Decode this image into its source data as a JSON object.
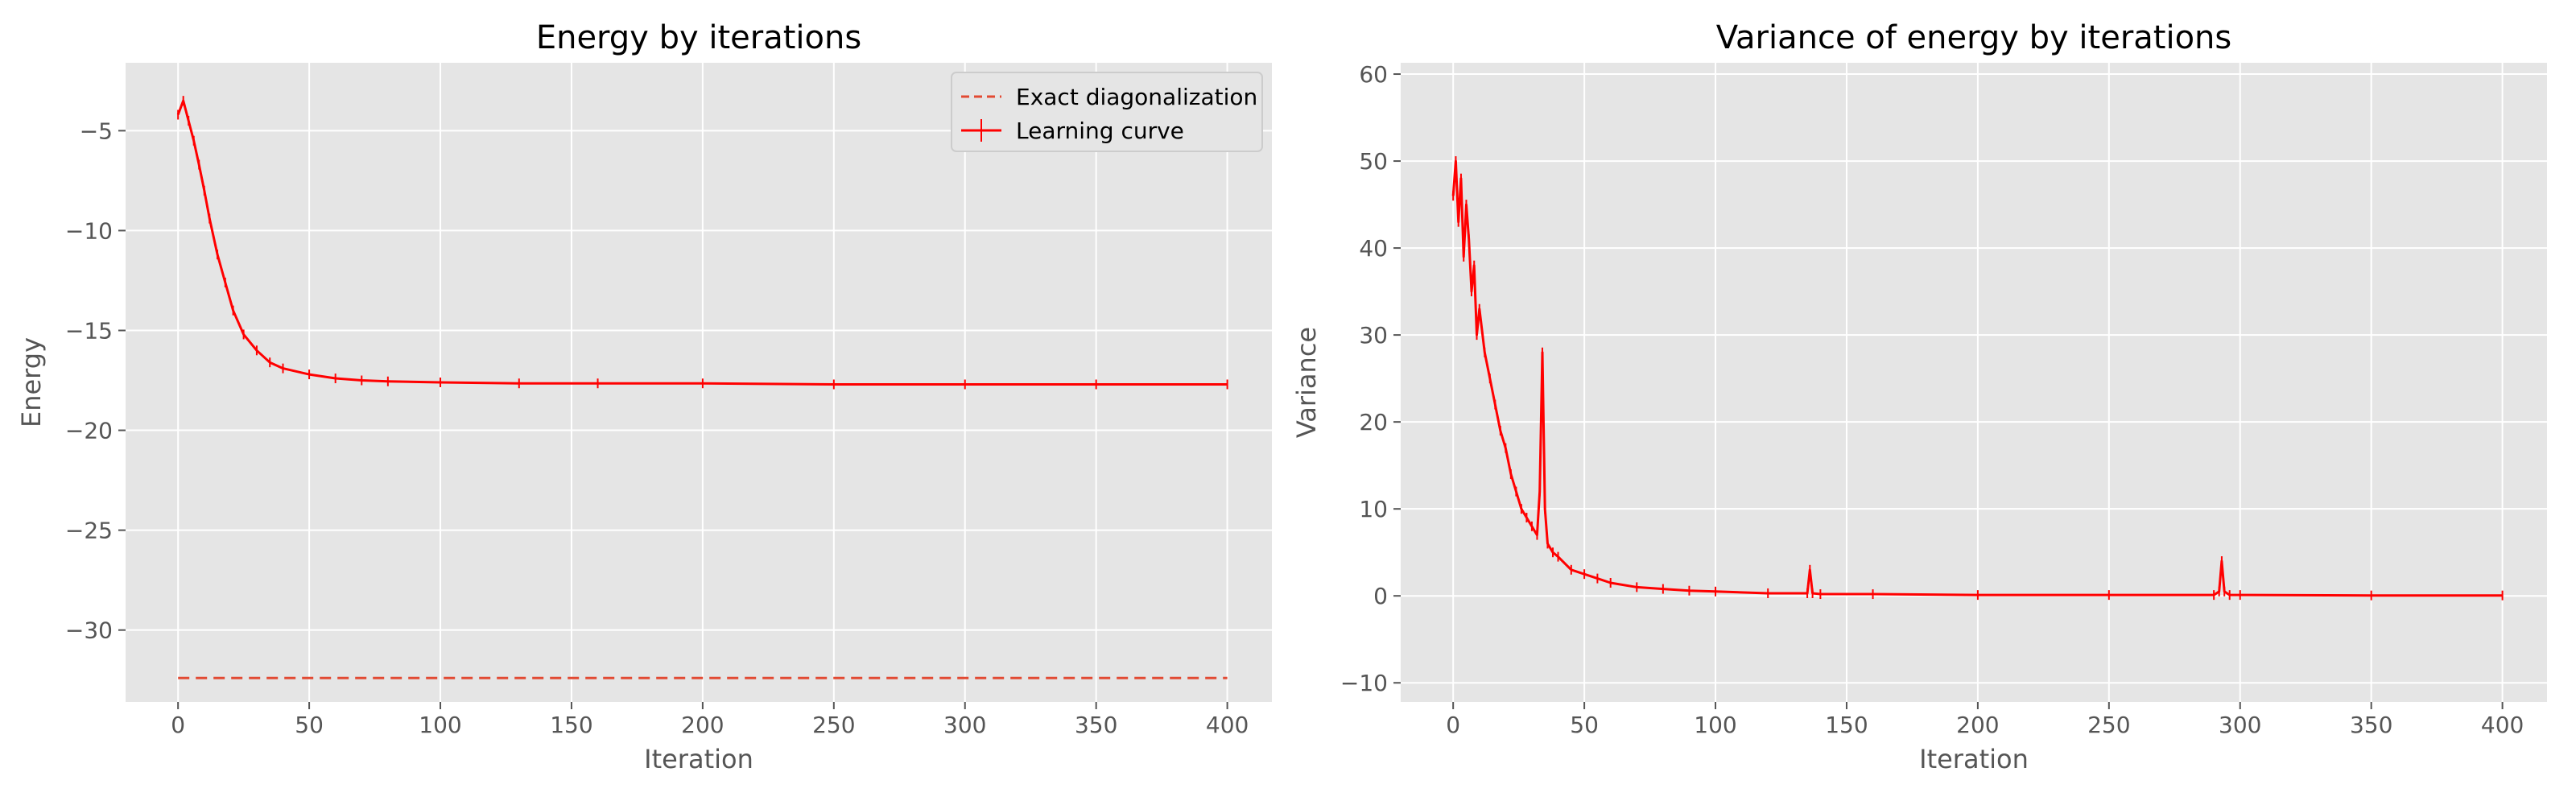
{
  "chart_data": [
    {
      "type": "line",
      "title": "Energy by iterations",
      "xlabel": "Iteration",
      "ylabel": "Energy",
      "xlim": [
        -20,
        417
      ],
      "ylim": [
        -33.6,
        -1.6
      ],
      "xticks": [
        0,
        50,
        100,
        150,
        200,
        250,
        300,
        350,
        400
      ],
      "xtick_labels": [
        "0",
        "50",
        "100",
        "150",
        "200",
        "250",
        "300",
        "350",
        "400"
      ],
      "yticks": [
        -30,
        -25,
        -20,
        -15,
        -10,
        -5
      ],
      "ytick_labels": [
        "−30",
        "−25",
        "−20",
        "−15",
        "−10",
        "−5"
      ],
      "grid": true,
      "legend": "top-right",
      "series": [
        {
          "name": "Exact diagonalization",
          "style": "dashed",
          "color": "#E24A33",
          "x": [
            0,
            400
          ],
          "y": [
            -32.4,
            -32.4
          ]
        },
        {
          "name": "Learning curve",
          "style": "solid-errorbar",
          "color": "#FF0000",
          "x": [
            0,
            2,
            4,
            6,
            8,
            10,
            12,
            15,
            18,
            21,
            25,
            30,
            35,
            40,
            50,
            60,
            70,
            80,
            100,
            130,
            160,
            200,
            250,
            300,
            350,
            400
          ],
          "y": [
            -4.2,
            -3.5,
            -4.5,
            -5.5,
            -6.7,
            -8.0,
            -9.4,
            -11.2,
            -12.6,
            -14.0,
            -15.2,
            -16.0,
            -16.6,
            -16.9,
            -17.2,
            -17.4,
            -17.5,
            -17.55,
            -17.6,
            -17.65,
            -17.65,
            -17.65,
            -17.7,
            -17.7,
            -17.7,
            -17.7
          ]
        }
      ]
    },
    {
      "type": "line",
      "title": "Variance of energy by iterations",
      "xlabel": "Iteration",
      "ylabel": "Variance",
      "xlim": [
        -20,
        417
      ],
      "ylim": [
        -12.2,
        61.3
      ],
      "xticks": [
        0,
        50,
        100,
        150,
        200,
        250,
        300,
        350,
        400
      ],
      "xtick_labels": [
        "0",
        "50",
        "100",
        "150",
        "200",
        "250",
        "300",
        "350",
        "400"
      ],
      "yticks": [
        -10,
        0,
        10,
        20,
        30,
        40,
        50,
        60
      ],
      "ytick_labels": [
        "−10",
        "0",
        "10",
        "20",
        "30",
        "40",
        "50",
        "60"
      ],
      "grid": true,
      "series": [
        {
          "color": "#FF0000",
          "style": "solid-errorbar",
          "x": [
            0,
            1,
            2,
            3,
            4,
            5,
            6,
            7,
            8,
            9,
            10,
            12,
            14,
            16,
            18,
            20,
            22,
            24,
            26,
            28,
            30,
            32,
            33,
            34,
            35,
            36,
            38,
            40,
            45,
            50,
            55,
            60,
            70,
            80,
            90,
            100,
            120,
            135,
            136,
            137,
            140,
            160,
            200,
            250,
            290,
            292,
            293,
            294,
            296,
            300,
            350,
            400
          ],
          "y": [
            46,
            50,
            43,
            48,
            39,
            45,
            41,
            35,
            38,
            30,
            33,
            28,
            25,
            22,
            19,
            17,
            14,
            12,
            10,
            9,
            8,
            7,
            12,
            28,
            10,
            6,
            5,
            4.5,
            3,
            2.5,
            2,
            1.5,
            1,
            0.8,
            0.6,
            0.5,
            0.3,
            0.3,
            3,
            0.3,
            0.2,
            0.2,
            0.1,
            0.1,
            0.1,
            0.5,
            4,
            0.5,
            0.1,
            0.1,
            0.05,
            0.05
          ]
        }
      ]
    }
  ]
}
